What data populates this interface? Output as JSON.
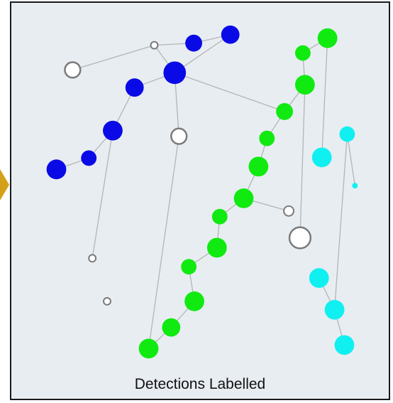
{
  "caption": "Detections Labelled",
  "colors": {
    "blue": "#0a0ae6",
    "green": "#11ea11",
    "cyan": "#11f0f0",
    "unlabelled_fill": "#ffffff",
    "unlabelled_stroke": "#7a7a7a",
    "edge": "#b4b4b4",
    "panel_bg": "#e8edf2",
    "marker": "#d4a017"
  },
  "legend_groups": [
    "blue",
    "green",
    "cyan",
    "unlabelled"
  ]
}
